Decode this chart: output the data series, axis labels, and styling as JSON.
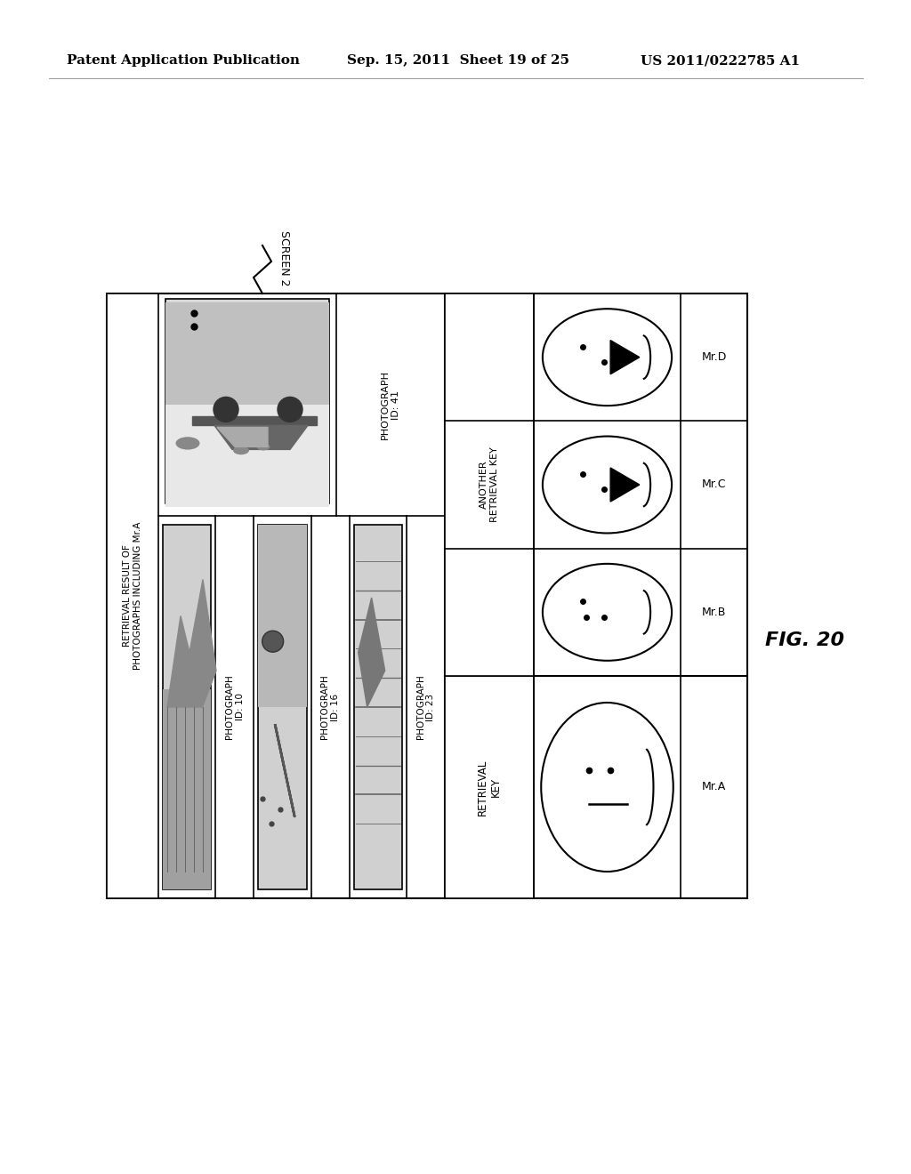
{
  "header_left": "Patent Application Publication",
  "header_mid": "Sep. 15, 2011  Sheet 19 of 25",
  "header_right": "US 2011/0222785 A1",
  "fig_label": "FIG. 20",
  "screen_label": "SCREEN 2",
  "retrieval_result_label": "RETRIEVAL RESULT OF\nPHOTOGRAPHS INCLUDING Mr.A",
  "retrieval_key_label": "RETRIEVAL\nKEY",
  "another_retrieval_key_label": "ANOTHER\nRETRIEVAL KEY",
  "photo_ids": [
    "PHOTOGRAPH\nID: 10",
    "PHOTOGRAPH\nID: 16",
    "PHOTOGRAPH\nID: 23",
    "PHOTOGRAPH\nID: 41"
  ],
  "face_names": [
    "Mr.A",
    "Mr.B",
    "Mr.C",
    "Mr.D"
  ],
  "bg_color": "#ffffff",
  "box_color": "#000000"
}
